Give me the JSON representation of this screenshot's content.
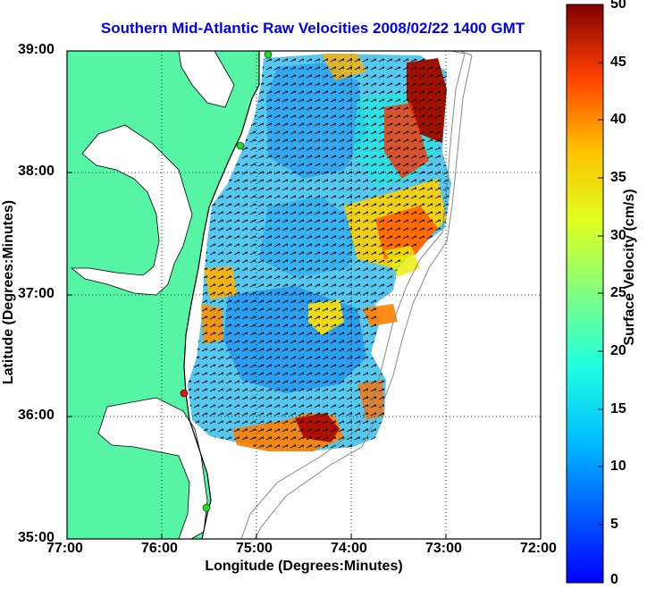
{
  "title": "Southern Mid-Atlantic Raw Velocities 2008/02/22 1400 GMT",
  "x_axis": {
    "label": "Longitude (Degrees:Minutes)",
    "ticks": [
      "77:00",
      "76:00",
      "75:00",
      "74:00",
      "73:00",
      "72:00"
    ]
  },
  "y_axis": {
    "label": "Latitude (Degrees:Minutes)",
    "ticks": [
      "39:00",
      "38:00",
      "37:00",
      "36:00",
      "35:00"
    ]
  },
  "colorbar": {
    "label": "Surface Velocity (cm/s)",
    "ticks": [
      "50",
      "45",
      "40",
      "35",
      "30",
      "25",
      "20",
      "15",
      "10",
      "5",
      "0"
    ],
    "range": [
      0,
      50
    ],
    "colormap": "jet"
  },
  "colors": {
    "land": "#55f5a5",
    "title": "#0000ee",
    "station_green": "#22dd22",
    "station_red": "#ee1111"
  },
  "map": {
    "lon_range": [
      -77,
      -72
    ],
    "lat_range": [
      35,
      39
    ],
    "grid": "dotted"
  }
}
